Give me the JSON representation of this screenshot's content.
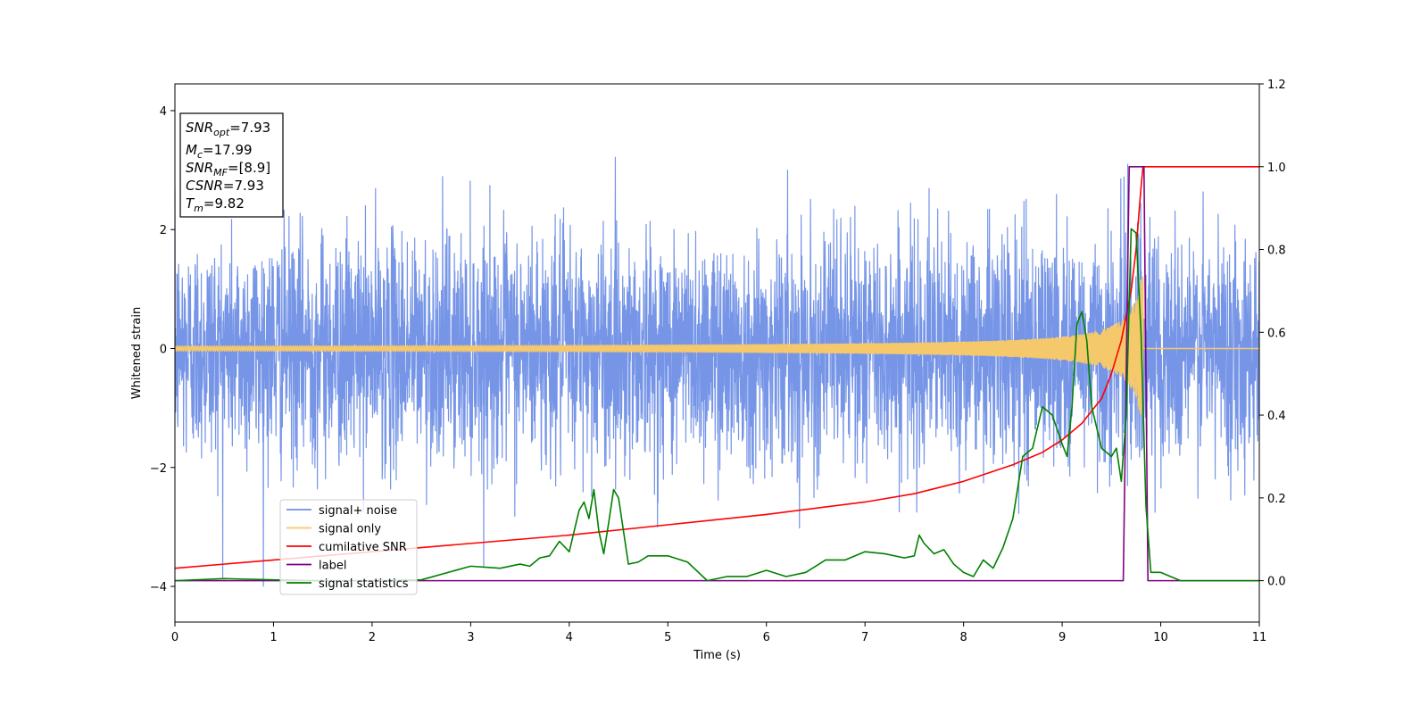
{
  "chart_data": {
    "type": "line",
    "title": "",
    "xlabel": "Time (s)",
    "ylabel": "Whitened strain",
    "y2label": "",
    "xlim": [
      0,
      11
    ],
    "ylim": [
      -4.6,
      4.45
    ],
    "y2lim": [
      -0.1,
      1.2
    ],
    "xticks": [
      "0",
      "1",
      "2",
      "3",
      "4",
      "5",
      "6",
      "7",
      "8",
      "9",
      "10",
      "11"
    ],
    "yticks": [
      "4",
      "2",
      "0",
      "−2",
      "−4"
    ],
    "y2ticks": [
      "1.2",
      "1.0",
      "0.8",
      "0.6",
      "0.4",
      "0.2",
      "0.0"
    ],
    "grid": false,
    "legend_position": "lower-left",
    "annotation": {
      "lines": [
        {
          "name": "SNR",
          "sub": "opt",
          "value": "=7.93"
        },
        {
          "name": "M",
          "sub": "c",
          "value": "=17.99"
        },
        {
          "name": "SNR",
          "sub": "MF",
          "value": "=[8.9]"
        },
        {
          "name": "CSNR",
          "sub": "",
          "value": "=7.93"
        },
        {
          "name": "T",
          "sub": "m",
          "value": "=9.82"
        }
      ]
    },
    "series": [
      {
        "name": "signal+ noise",
        "axis": "left",
        "color": "#6f8fe6",
        "kind": "noise",
        "approx_std": 1.0,
        "approx_range": [
          -4.0,
          4.0
        ],
        "chirp_from_x": 8.5,
        "chirp_to_x": 9.82
      },
      {
        "name": "signal only",
        "axis": "left",
        "color": "#f5c86b",
        "kind": "chirp",
        "x_start": 0,
        "x_end": 9.82,
        "amplitude_start": 0.02,
        "amplitude_peak": 1.4,
        "freq_start_hz": 20
      },
      {
        "name": "cumilative SNR",
        "axis": "right",
        "color": "#ff0000",
        "x": [
          0,
          1,
          2,
          3,
          4,
          5,
          6,
          7,
          7.5,
          8,
          8.5,
          8.8,
          9.0,
          9.2,
          9.4,
          9.5,
          9.6,
          9.7,
          9.75,
          9.8,
          9.82,
          11
        ],
        "y": [
          0.03,
          0.05,
          0.07,
          0.09,
          0.11,
          0.135,
          0.16,
          0.19,
          0.21,
          0.24,
          0.28,
          0.31,
          0.34,
          0.38,
          0.44,
          0.5,
          0.58,
          0.7,
          0.8,
          0.95,
          1.0,
          1.0
        ]
      },
      {
        "name": "label",
        "axis": "right",
        "color": "#800080",
        "x": [
          0,
          9.62,
          9.68,
          9.83,
          9.87,
          11
        ],
        "y": [
          0.0,
          0.0,
          1.0,
          1.0,
          0.0,
          0.0
        ]
      },
      {
        "name": "signal statistics",
        "axis": "right",
        "color": "#008000",
        "x": [
          0,
          0.5,
          1,
          1.5,
          2,
          2.5,
          3,
          3.3,
          3.5,
          3.6,
          3.7,
          3.8,
          3.9,
          4.0,
          4.1,
          4.15,
          4.2,
          4.25,
          4.3,
          4.35,
          4.4,
          4.45,
          4.5,
          4.55,
          4.6,
          4.7,
          4.8,
          5.0,
          5.2,
          5.4,
          5.6,
          5.8,
          6.0,
          6.2,
          6.4,
          6.6,
          6.8,
          7.0,
          7.2,
          7.4,
          7.5,
          7.55,
          7.6,
          7.7,
          7.8,
          7.9,
          8.0,
          8.1,
          8.2,
          8.3,
          8.4,
          8.5,
          8.6,
          8.7,
          8.8,
          8.9,
          9.0,
          9.05,
          9.1,
          9.15,
          9.2,
          9.25,
          9.3,
          9.4,
          9.5,
          9.55,
          9.6,
          9.65,
          9.7,
          9.75,
          9.8,
          9.85,
          9.9,
          10.0,
          10.2,
          10.5,
          11
        ],
        "y": [
          0.0,
          0.005,
          0.002,
          0.0,
          0.0,
          0.002,
          0.035,
          0.03,
          0.04,
          0.035,
          0.055,
          0.06,
          0.095,
          0.07,
          0.17,
          0.19,
          0.15,
          0.22,
          0.12,
          0.065,
          0.14,
          0.22,
          0.2,
          0.12,
          0.04,
          0.045,
          0.06,
          0.06,
          0.045,
          0.0,
          0.01,
          0.01,
          0.025,
          0.01,
          0.02,
          0.05,
          0.05,
          0.07,
          0.065,
          0.055,
          0.06,
          0.11,
          0.09,
          0.065,
          0.075,
          0.04,
          0.02,
          0.01,
          0.05,
          0.03,
          0.08,
          0.15,
          0.3,
          0.32,
          0.42,
          0.4,
          0.33,
          0.3,
          0.42,
          0.62,
          0.65,
          0.58,
          0.42,
          0.32,
          0.3,
          0.32,
          0.24,
          0.4,
          0.85,
          0.84,
          0.6,
          0.18,
          0.02,
          0.02,
          0.0,
          0.0,
          0.0
        ]
      }
    ]
  }
}
